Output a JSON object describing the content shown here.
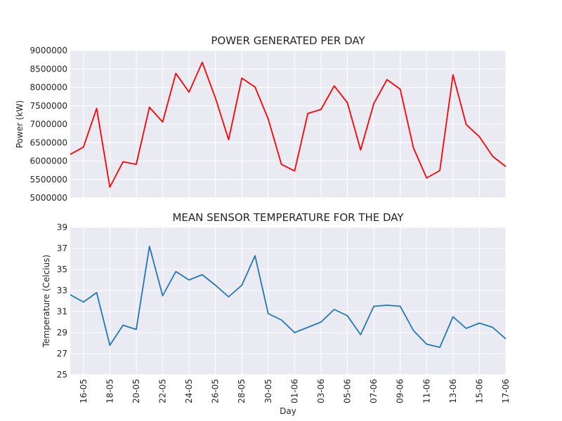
{
  "chart_data": [
    {
      "type": "line",
      "title": "POWER GENERATED PER DAY",
      "xlabel": "",
      "ylabel": "Power (kW)",
      "ylim": [
        5000000,
        9000000
      ],
      "yticks": [
        "5000000",
        "5500000",
        "6000000",
        "6500000",
        "7000000",
        "7500000",
        "8000000",
        "8500000",
        "9000000"
      ],
      "color": "#ff0000",
      "grid": true,
      "x": [
        "15-05",
        "16-05",
        "17-05",
        "18-05",
        "19-05",
        "20-05",
        "21-05",
        "22-05",
        "23-05",
        "24-05",
        "25-05",
        "26-05",
        "27-05",
        "28-05",
        "29-05",
        "30-05",
        "31-05",
        "01-06",
        "02-06",
        "03-06",
        "04-06",
        "05-06",
        "06-06",
        "07-06",
        "08-06",
        "09-06",
        "10-06",
        "11-06",
        "12-06",
        "13-06",
        "14-06",
        "15-06",
        "16-06",
        "17-06"
      ],
      "values": [
        6180000,
        6380000,
        7430000,
        5290000,
        5980000,
        5910000,
        7460000,
        7060000,
        8380000,
        7870000,
        8680000,
        7710000,
        6580000,
        8250000,
        8010000,
        7140000,
        5910000,
        5730000,
        7290000,
        7400000,
        8040000,
        7580000,
        6300000,
        7560000,
        8210000,
        7950000,
        6360000,
        5540000,
        5740000,
        8340000,
        6990000,
        6660000,
        6130000,
        5850000
      ]
    },
    {
      "type": "line",
      "title": "MEAN SENSOR TEMPERATURE FOR THE DAY",
      "xlabel": "Day",
      "ylabel": "Temperature (Celcius)",
      "ylim": [
        25,
        39
      ],
      "yticks": [
        "25",
        "27",
        "29",
        "31",
        "33",
        "35",
        "37",
        "39"
      ],
      "xticks": [
        "16-05",
        "18-05",
        "20-05",
        "22-05",
        "24-05",
        "26-05",
        "28-05",
        "30-05",
        "01-06",
        "03-06",
        "05-06",
        "07-06",
        "09-06",
        "11-06",
        "13-06",
        "15-06",
        "17-06"
      ],
      "color": "#1f77b4",
      "grid": true,
      "x": [
        "15-05",
        "16-05",
        "17-05",
        "18-05",
        "19-05",
        "20-05",
        "21-05",
        "22-05",
        "23-05",
        "24-05",
        "25-05",
        "26-05",
        "27-05",
        "28-05",
        "29-05",
        "30-05",
        "31-05",
        "01-06",
        "02-06",
        "03-06",
        "04-06",
        "05-06",
        "06-06",
        "07-06",
        "08-06",
        "09-06",
        "10-06",
        "11-06",
        "12-06",
        "13-06",
        "14-06",
        "15-06",
        "16-06",
        "17-06"
      ],
      "values": [
        32.6,
        31.9,
        32.8,
        27.8,
        29.7,
        29.3,
        37.2,
        32.5,
        34.8,
        34.0,
        34.5,
        33.5,
        32.4,
        33.5,
        36.3,
        30.8,
        30.2,
        29.0,
        29.5,
        30.0,
        31.2,
        30.6,
        28.8,
        31.5,
        31.6,
        31.5,
        29.2,
        27.9,
        27.6,
        30.5,
        29.4,
        29.9,
        29.5,
        28.4
      ]
    }
  ]
}
